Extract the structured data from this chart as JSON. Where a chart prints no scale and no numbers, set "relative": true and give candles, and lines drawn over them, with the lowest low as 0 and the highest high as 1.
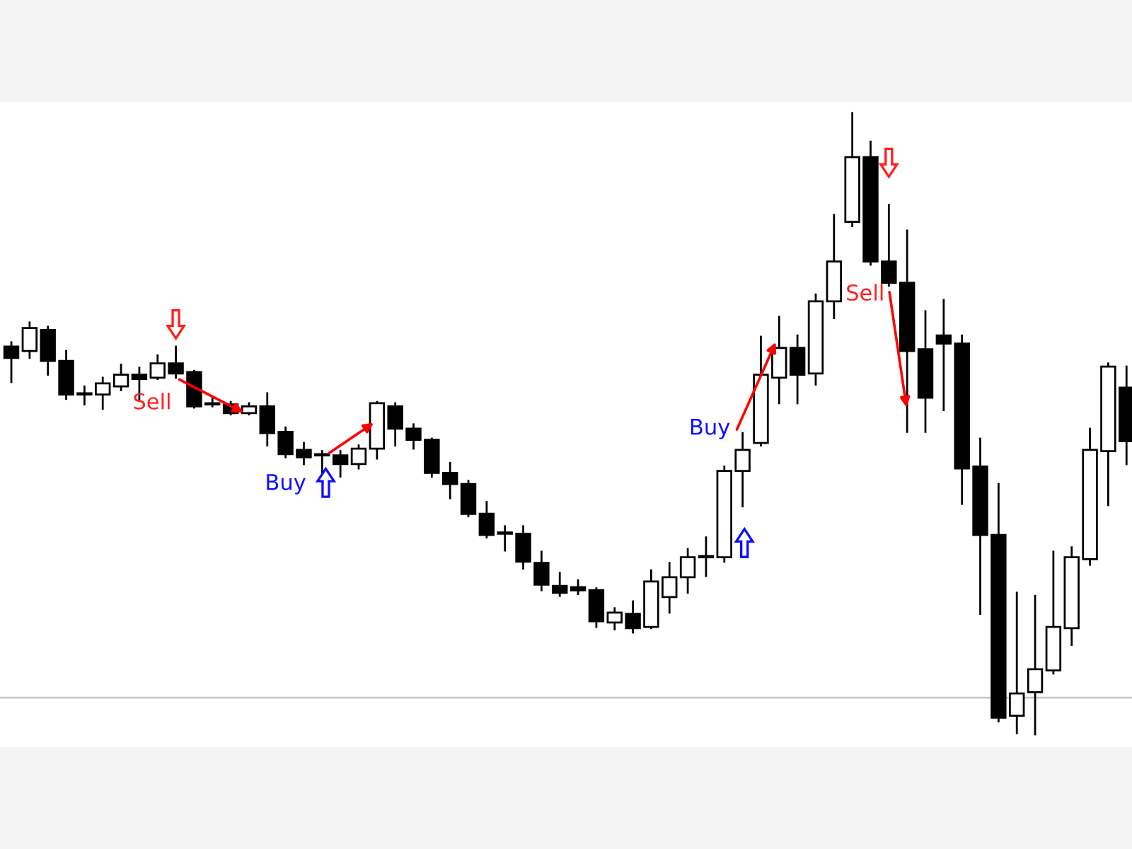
{
  "chart_data": {
    "type": "candlestick",
    "relative": true,
    "categories": [
      null,
      null,
      null,
      null,
      null,
      null,
      null,
      null,
      null,
      null,
      null,
      null,
      null,
      null,
      null,
      null,
      null,
      null,
      null,
      null,
      null,
      null,
      null,
      null,
      null,
      null,
      null,
      null,
      null,
      null,
      null,
      null,
      null,
      null,
      null,
      null,
      null,
      null,
      null,
      null,
      null,
      null,
      null,
      null,
      null,
      null,
      null,
      null,
      null,
      null,
      null,
      null,
      null,
      null,
      null,
      null,
      null,
      null,
      null,
      null,
      null,
      null
    ],
    "ohlc": [
      [
        0.624,
        0.631,
        0.567,
        0.606
      ],
      [
        0.617,
        0.663,
        0.606,
        0.654
      ],
      [
        0.651,
        0.656,
        0.579,
        0.601
      ],
      [
        0.601,
        0.617,
        0.54,
        0.547
      ],
      [
        0.547,
        0.56,
        0.531,
        0.547
      ],
      [
        0.547,
        0.574,
        0.524,
        0.565
      ],
      [
        0.56,
        0.595,
        0.554,
        0.579
      ],
      [
        0.579,
        0.59,
        0.538,
        0.572
      ],
      [
        0.574,
        0.61,
        0.572,
        0.597
      ],
      [
        0.597,
        0.624,
        0.574,
        0.581
      ],
      [
        0.583,
        0.585,
        0.526,
        0.528
      ],
      [
        0.533,
        0.54,
        0.528,
        0.531
      ],
      [
        0.531,
        0.535,
        0.515,
        0.517
      ],
      [
        0.517,
        0.533,
        0.515,
        0.528
      ],
      [
        0.528,
        0.549,
        0.465,
        0.485
      ],
      [
        0.487,
        0.494,
        0.446,
        0.451
      ],
      [
        0.458,
        0.469,
        0.435,
        0.446
      ],
      [
        0.449,
        0.456,
        0.421,
        0.449
      ],
      [
        0.449,
        0.456,
        0.415,
        0.435
      ],
      [
        0.435,
        0.465,
        0.428,
        0.46
      ],
      [
        0.46,
        0.535,
        0.444,
        0.533
      ],
      [
        0.528,
        0.533,
        0.465,
        0.492
      ],
      [
        0.492,
        0.499,
        0.46,
        0.474
      ],
      [
        0.474,
        0.476,
        0.415,
        0.421
      ],
      [
        0.421,
        0.437,
        0.38,
        0.403
      ],
      [
        0.403,
        0.408,
        0.351,
        0.355
      ],
      [
        0.355,
        0.374,
        0.317,
        0.321
      ],
      [
        0.323,
        0.335,
        0.296,
        0.323
      ],
      [
        0.323,
        0.335,
        0.267,
        0.278
      ],
      [
        0.276,
        0.294,
        0.232,
        0.241
      ],
      [
        0.239,
        0.26,
        0.223,
        0.228
      ],
      [
        0.237,
        0.248,
        0.226,
        0.232
      ],
      [
        0.232,
        0.235,
        0.173,
        0.182
      ],
      [
        0.18,
        0.203,
        0.169,
        0.196
      ],
      [
        0.194,
        0.214,
        0.164,
        0.171
      ],
      [
        0.173,
        0.264,
        0.171,
        0.246
      ],
      [
        0.221,
        0.276,
        0.196,
        0.253
      ],
      [
        0.253,
        0.298,
        0.228,
        0.285
      ],
      [
        0.285,
        0.317,
        0.255,
        0.285
      ],
      [
        0.285,
        0.431,
        0.278,
        0.424
      ],
      [
        0.424,
        0.485,
        0.367,
        0.458
      ],
      [
        0.469,
        0.64,
        0.465,
        0.579
      ],
      [
        0.574,
        0.672,
        0.533,
        0.622
      ],
      [
        0.622,
        0.642,
        0.533,
        0.579
      ],
      [
        0.581,
        0.708,
        0.563,
        0.697
      ],
      [
        0.697,
        0.836,
        0.67,
        0.761
      ],
      [
        0.825,
        1.0,
        0.818,
        0.929
      ],
      [
        0.929,
        0.954,
        0.756,
        0.761
      ],
      [
        0.761,
        0.852,
        0.722,
        0.727
      ],
      [
        0.727,
        0.811,
        0.487,
        0.617
      ],
      [
        0.62,
        0.681,
        0.487,
        0.542
      ],
      [
        0.642,
        0.699,
        0.522,
        0.629
      ],
      [
        0.629,
        0.642,
        0.371,
        0.428
      ],
      [
        0.431,
        0.476,
        0.194,
        0.321
      ],
      [
        0.321,
        0.403,
        0.021,
        0.027
      ],
      [
        0.03,
        0.228,
        0.002,
        0.066
      ],
      [
        0.068,
        0.223,
        0.0,
        0.105
      ],
      [
        0.103,
        0.294,
        0.098,
        0.173
      ],
      [
        0.171,
        0.301,
        0.144,
        0.285
      ],
      [
        0.282,
        0.492,
        0.273,
        0.458
      ],
      [
        0.456,
        0.597,
        0.369,
        0.592
      ],
      [
        0.558,
        0.592,
        0.435,
        0.472
      ]
    ],
    "ref_lines": [
      {
        "axis": "y",
        "value": 0.059,
        "color": "#c8c8c8"
      }
    ],
    "annotations": [
      "Sell",
      "Buy",
      "Buy",
      "Sell"
    ]
  }
}
